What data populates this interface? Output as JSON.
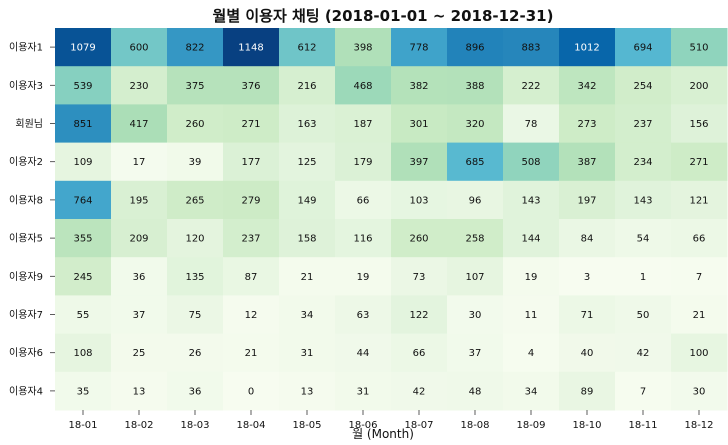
{
  "chart_data": {
    "type": "heatmap",
    "title": "월별 이용자 채팅 (2018-01-01  ~ 2018-12-31)",
    "xlabel": "월 (Month)",
    "ylabel": "",
    "x_categories": [
      "18-01",
      "18-02",
      "18-03",
      "18-04",
      "18-05",
      "18-06",
      "18-07",
      "18-08",
      "18-09",
      "18-10",
      "18-11",
      "18-12"
    ],
    "y_categories": [
      "이용자1",
      "이용자3",
      "회원님",
      "이용자2",
      "이용자8",
      "이용자5",
      "이용자9",
      "이용자7",
      "이용자6",
      "이용자4"
    ],
    "values": [
      [
        1079,
        600,
        822,
        1148,
        612,
        398,
        778,
        896,
        883,
        1012,
        694,
        510
      ],
      [
        539,
        230,
        375,
        376,
        216,
        468,
        382,
        388,
        222,
        342,
        254,
        200
      ],
      [
        851,
        417,
        260,
        271,
        163,
        187,
        301,
        320,
        78,
        273,
        237,
        156
      ],
      [
        109,
        17,
        39,
        177,
        125,
        179,
        397,
        685,
        508,
        387,
        234,
        271
      ],
      [
        764,
        195,
        265,
        279,
        149,
        66,
        103,
        96,
        143,
        197,
        143,
        121
      ],
      [
        355,
        209,
        120,
        237,
        158,
        116,
        260,
        258,
        144,
        84,
        54,
        66
      ],
      [
        245,
        36,
        135,
        87,
        21,
        19,
        73,
        107,
        19,
        3,
        1,
        7
      ],
      [
        55,
        37,
        75,
        12,
        34,
        63,
        122,
        30,
        11,
        71,
        50,
        21
      ],
      [
        108,
        25,
        26,
        21,
        31,
        44,
        66,
        37,
        4,
        40,
        42,
        100
      ],
      [
        35,
        13,
        36,
        0,
        13,
        31,
        42,
        48,
        34,
        89,
        7,
        30
      ]
    ],
    "colormap": "GnBu",
    "color_range": [
      0,
      1148
    ],
    "annotated": true,
    "grid": false,
    "legend": "none"
  }
}
